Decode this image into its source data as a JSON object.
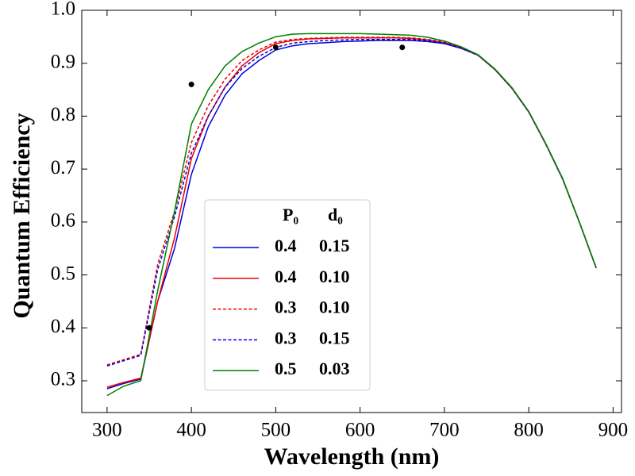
{
  "chart_data": {
    "type": "line",
    "xlabel": "Wavelength (nm)",
    "ylabel": "Quantum Efficiency",
    "xlim": [
      270,
      910
    ],
    "ylim": [
      0.24,
      1.0
    ],
    "xticks": [
      300,
      400,
      500,
      600,
      700,
      800,
      900
    ],
    "yticks": [
      0.3,
      0.4,
      0.5,
      0.6,
      0.7,
      0.8,
      0.9,
      {
        "value": 1.0,
        "label": "1.0"
      }
    ],
    "x": [
      300,
      320,
      340,
      360,
      380,
      400,
      420,
      440,
      460,
      480,
      500,
      520,
      540,
      560,
      580,
      600,
      620,
      640,
      660,
      680,
      700,
      720,
      740,
      760,
      780,
      800,
      820,
      840,
      860,
      880
    ],
    "legend_columns": [
      "P₀",
      "d₀"
    ],
    "series": [
      {
        "params": [
          "0.4",
          "0.15"
        ],
        "color": "#0000dd",
        "dash": false,
        "values": [
          0.285,
          0.295,
          0.303,
          0.45,
          0.55,
          0.69,
          0.78,
          0.84,
          0.88,
          0.905,
          0.925,
          0.933,
          0.937,
          0.939,
          0.941,
          0.942,
          0.943,
          0.943,
          0.943,
          0.941,
          0.937,
          0.928,
          0.915,
          0.888,
          0.853,
          0.808,
          0.748,
          0.682,
          0.6,
          0.513
        ]
      },
      {
        "params": [
          "0.4",
          "0.10"
        ],
        "color": "#ee0000",
        "dash": false,
        "values": [
          0.288,
          0.297,
          0.305,
          0.45,
          0.57,
          0.72,
          0.8,
          0.855,
          0.895,
          0.92,
          0.937,
          0.943,
          0.946,
          0.947,
          0.948,
          0.948,
          0.948,
          0.948,
          0.947,
          0.944,
          0.939,
          0.929,
          0.915,
          0.888,
          0.853,
          0.808,
          0.748,
          0.682,
          0.6,
          0.513
        ]
      },
      {
        "params": [
          "0.3",
          "0.10"
        ],
        "color": "#ee0000",
        "dash": true,
        "values": [
          0.33,
          0.34,
          0.35,
          0.52,
          0.62,
          0.75,
          0.82,
          0.87,
          0.905,
          0.925,
          0.94,
          0.945,
          0.947,
          0.948,
          0.949,
          0.949,
          0.949,
          0.949,
          0.948,
          0.945,
          0.94,
          0.929,
          0.915,
          0.888,
          0.853,
          0.808,
          0.748,
          0.682,
          0.6,
          0.513
        ]
      },
      {
        "params": [
          "0.3",
          "0.15"
        ],
        "color": "#0000dd",
        "dash": true,
        "values": [
          0.328,
          0.338,
          0.348,
          0.51,
          0.61,
          0.73,
          0.8,
          0.855,
          0.89,
          0.913,
          0.93,
          0.938,
          0.941,
          0.943,
          0.944,
          0.945,
          0.945,
          0.945,
          0.945,
          0.943,
          0.938,
          0.929,
          0.915,
          0.888,
          0.853,
          0.808,
          0.748,
          0.682,
          0.6,
          0.513
        ]
      },
      {
        "params": [
          "0.5",
          "0.03"
        ],
        "color": "#008000",
        "dash": false,
        "values": [
          0.272,
          0.29,
          0.3,
          0.47,
          0.62,
          0.785,
          0.85,
          0.895,
          0.922,
          0.938,
          0.95,
          0.955,
          0.956,
          0.956,
          0.956,
          0.956,
          0.955,
          0.954,
          0.953,
          0.949,
          0.942,
          0.931,
          0.916,
          0.889,
          0.854,
          0.809,
          0.749,
          0.683,
          0.6,
          0.513
        ]
      }
    ],
    "points": {
      "color": "#000000",
      "x": [
        350,
        400,
        500,
        650
      ],
      "values": [
        0.4,
        0.86,
        0.93,
        0.93
      ]
    }
  }
}
